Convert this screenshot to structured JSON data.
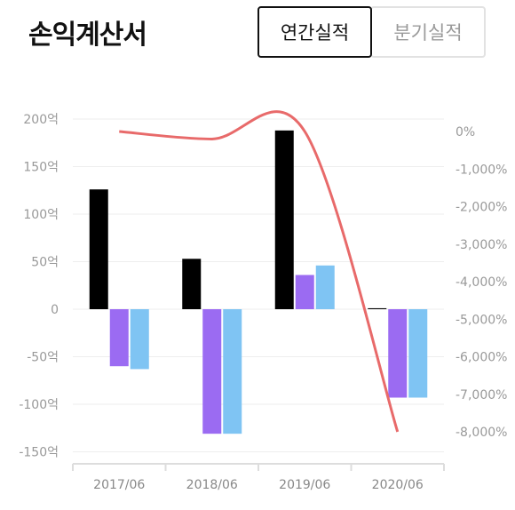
{
  "header": {
    "title": "손익계산서",
    "tabs": [
      {
        "label": "연간실적",
        "active": true
      },
      {
        "label": "분기실적",
        "active": false
      }
    ]
  },
  "chart_data": {
    "type": "bar",
    "categories": [
      "2017/06",
      "2018/06",
      "2019/06",
      "2020/06"
    ],
    "series": [
      {
        "color": "#000000",
        "values": [
          126,
          53,
          188,
          1
        ]
      },
      {
        "color": "#9b6bf2",
        "values": [
          -60,
          -131,
          36,
          -93
        ]
      },
      {
        "color": "#7fc4f3",
        "values": [
          -63,
          -131,
          46,
          -93
        ]
      }
    ],
    "line_series": {
      "color": "#e86a6a",
      "values": [
        0,
        -200,
        0,
        -8000
      ]
    },
    "y_left": {
      "lim": [
        -150,
        200
      ],
      "ticks": [
        200,
        150,
        100,
        50,
        0,
        -50,
        -100,
        -150
      ],
      "tick_labels": [
        "200억",
        "150억",
        "100억",
        "50억",
        "0",
        "-50억",
        "-100억",
        "-150억"
      ]
    },
    "y_right": {
      "lim": [
        -8000,
        0
      ],
      "ticks": [
        0,
        -1000,
        -2000,
        -3000,
        -4000,
        -5000,
        -6000,
        -7000,
        -8000
      ],
      "tick_labels": [
        "0%",
        "-1,000%",
        "-2,000%",
        "-3,000%",
        "-4,000%",
        "-5,000%",
        "-6,000%",
        "-7,000%",
        "-8,000%"
      ]
    },
    "grid": true
  }
}
